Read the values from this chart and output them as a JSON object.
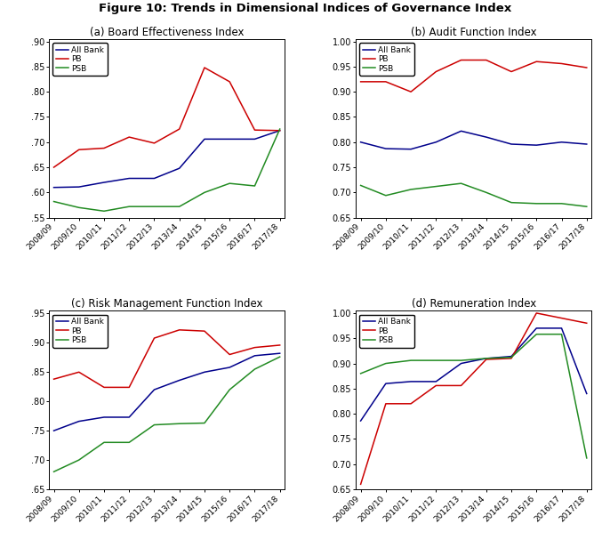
{
  "title": "Figure 10: Trends in Dimensional Indices of Governance Index",
  "x_labels": [
    "2008/09",
    "2009/10",
    "2010/11",
    "2011/12",
    "2012/13",
    "2013/14",
    "2014/15",
    "2015/16",
    "2016/17",
    "2017/18"
  ],
  "subplots": [
    {
      "title": "(a) Board Effectiveness Index",
      "ylim": [
        0.55,
        0.905
      ],
      "yticks": [
        0.55,
        0.6,
        0.65,
        0.7,
        0.75,
        0.8,
        0.85,
        0.9
      ],
      "ytick_labels": [
        ".55",
        ".60",
        ".65",
        ".70",
        ".75",
        ".80",
        ".85",
        ".90"
      ],
      "all_bank": [
        0.61,
        0.611,
        0.62,
        0.628,
        0.628,
        0.648,
        0.706,
        0.706,
        0.706,
        0.723
      ],
      "pb": [
        0.65,
        0.685,
        0.688,
        0.71,
        0.698,
        0.726,
        0.848,
        0.82,
        0.724,
        0.723
      ],
      "psb": [
        0.582,
        0.57,
        0.563,
        0.572,
        0.572,
        0.572,
        0.6,
        0.618,
        0.613,
        0.726
      ]
    },
    {
      "title": "(b) Audit Function Index",
      "ylim": [
        0.65,
        1.005
      ],
      "yticks": [
        0.65,
        0.7,
        0.75,
        0.8,
        0.85,
        0.9,
        0.95,
        1.0
      ],
      "ytick_labels": [
        "0.65",
        "0.70",
        "0.75",
        "0.80",
        "0.85",
        "0.90",
        "0.95",
        "1.00"
      ],
      "all_bank": [
        0.8,
        0.787,
        0.786,
        0.8,
        0.822,
        0.81,
        0.796,
        0.794,
        0.8,
        0.796
      ],
      "pb": [
        0.92,
        0.92,
        0.9,
        0.94,
        0.963,
        0.963,
        0.94,
        0.96,
        0.956,
        0.948
      ],
      "psb": [
        0.714,
        0.694,
        0.706,
        0.712,
        0.718,
        0.7,
        0.68,
        0.678,
        0.678,
        0.672
      ]
    },
    {
      "title": "(c) Risk Management Function Index",
      "ylim": [
        0.65,
        0.955
      ],
      "yticks": [
        0.65,
        0.7,
        0.75,
        0.8,
        0.85,
        0.9,
        0.95
      ],
      "ytick_labels": [
        ".65",
        ".70",
        ".75",
        ".80",
        ".85",
        ".90",
        ".95"
      ],
      "all_bank": [
        0.75,
        0.766,
        0.773,
        0.773,
        0.82,
        0.836,
        0.85,
        0.858,
        0.878,
        0.882
      ],
      "pb": [
        0.838,
        0.85,
        0.824,
        0.824,
        0.908,
        0.922,
        0.92,
        0.88,
        0.892,
        0.896
      ],
      "psb": [
        0.68,
        0.7,
        0.73,
        0.73,
        0.76,
        0.762,
        0.763,
        0.82,
        0.855,
        0.876
      ]
    },
    {
      "title": "(d) Remuneration Index",
      "ylim": [
        0.65,
        1.005
      ],
      "yticks": [
        0.65,
        0.7,
        0.75,
        0.8,
        0.85,
        0.9,
        0.95,
        1.0
      ],
      "ytick_labels": [
        "0.65",
        "0.70",
        "0.75",
        "0.80",
        "0.85",
        "0.90",
        "0.95",
        "1.00"
      ],
      "all_bank": [
        0.786,
        0.86,
        0.864,
        0.864,
        0.9,
        0.91,
        0.914,
        0.97,
        0.97,
        0.84
      ],
      "pb": [
        0.66,
        0.82,
        0.82,
        0.856,
        0.856,
        0.908,
        0.91,
        1.0,
        0.99,
        0.98
      ],
      "psb": [
        0.88,
        0.9,
        0.906,
        0.906,
        0.906,
        0.91,
        0.912,
        0.958,
        0.958,
        0.712
      ]
    }
  ],
  "colors": {
    "all_bank": "#00008B",
    "pb": "#CC0000",
    "psb": "#228B22"
  },
  "legend_labels": [
    "All Bank",
    "PB",
    "PSB"
  ],
  "figsize": [
    6.86,
    6.25
  ],
  "dpi": 100
}
